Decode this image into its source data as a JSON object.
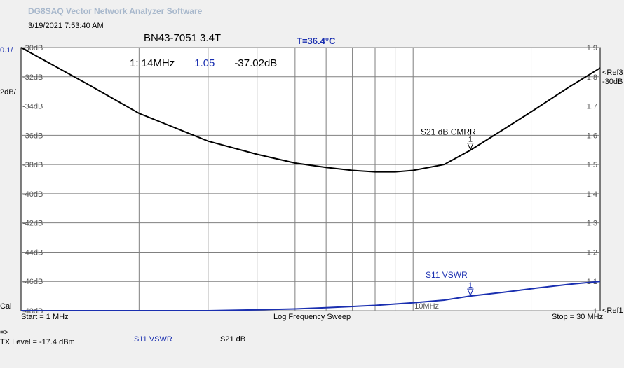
{
  "app": {
    "title": "DG8SAQ Vector Network Analyzer Software"
  },
  "header": {
    "datetime": "3/19/2021   7:53:40 AM",
    "title": "BN43-7051 3.4T",
    "temperature": "T=36.4°C"
  },
  "scale": {
    "left_top": "0.1/",
    "left_second": "2dB/",
    "ref3": "<Ref3",
    "ref3_value": "-30dB",
    "ref1": "<Ref1",
    "cal": "Cal"
  },
  "marker": {
    "label": "1: 14MHz",
    "vswr": "1.05",
    "db": "-37.02dB"
  },
  "footer": {
    "start": "Start = 1 MHz",
    "sweep": "Log Frequency Sweep",
    "stop": "Stop = 30 MHz",
    "arrow": "=>",
    "tx_level": "TX Level = -17.4 dBm",
    "trace_s11": "S11   VSWR",
    "trace_s21": "S21   dB"
  },
  "colors": {
    "s21": "#000000",
    "s11": "#1a2fb0",
    "grid": "#808080",
    "plot_bg": "#ffffff"
  },
  "chart_data": {
    "type": "line",
    "x_scale": "log",
    "x_unit": "MHz",
    "xlim": [
      1,
      30
    ],
    "x_tick_label": "10MHz",
    "left_axis": {
      "ylim": [
        -48,
        -30
      ],
      "ticks": [
        -30,
        -32,
        -34,
        -36,
        -38,
        -40,
        -42,
        -44,
        -46,
        -48
      ],
      "tick_labels": [
        "-30dB",
        "-32dB",
        "-34dB",
        "-36dB",
        "-38dB",
        "-40dB",
        "-42dB",
        "-44dB",
        "-46dB",
        "-48dB"
      ]
    },
    "right_axis": {
      "ylim": [
        1.0,
        1.9
      ],
      "ticks": [
        1.9,
        1.8,
        1.7,
        1.6,
        1.5,
        1.4,
        1.3,
        1.2,
        1.1,
        1.0
      ],
      "tick_labels": [
        "1.9",
        "1.8",
        "1.7",
        "1.6",
        "1.5",
        "1.4",
        "1.3",
        "1.2",
        "1.1",
        "1"
      ]
    },
    "series": [
      {
        "name": "S21 dB CMRR",
        "axis": "left",
        "x": [
          1,
          1.5,
          2,
          3,
          4,
          5,
          6,
          7,
          8,
          9,
          10,
          12,
          14,
          17,
          20,
          25,
          30
        ],
        "y": [
          -30.0,
          -32.6,
          -34.5,
          -36.4,
          -37.3,
          -37.9,
          -38.2,
          -38.4,
          -38.5,
          -38.5,
          -38.4,
          -38.0,
          -37.02,
          -35.6,
          -34.4,
          -32.7,
          -31.4
        ]
      },
      {
        "name": "S11 VSWR",
        "axis": "right",
        "x": [
          1,
          2,
          3,
          4,
          5,
          6,
          8,
          10,
          12,
          14,
          17,
          20,
          25,
          30
        ],
        "y": [
          1.0,
          1.0,
          1.0,
          1.003,
          1.006,
          1.01,
          1.018,
          1.027,
          1.036,
          1.05,
          1.063,
          1.075,
          1.09,
          1.1
        ]
      }
    ],
    "markers": [
      {
        "label": "1",
        "x": 14
      }
    ],
    "grid": true,
    "legend": "none"
  }
}
